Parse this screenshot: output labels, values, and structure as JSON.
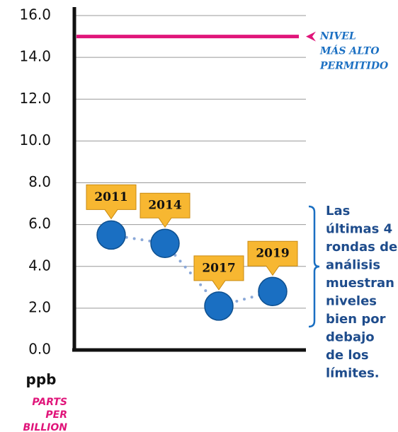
{
  "chart_data": {
    "type": "line",
    "categories": [
      "2011",
      "2014",
      "2017",
      "2019"
    ],
    "values": [
      5.5,
      5.1,
      2.1,
      2.8
    ],
    "color": "#1a6fc2",
    "line_color": "#8aa8d8",
    "label_color": "#f7b731",
    "ylim": [
      0,
      16
    ],
    "yticks": [
      {
        "value": 0,
        "label": "0.0"
      },
      {
        "value": 2,
        "label": "2.0"
      },
      {
        "value": 4,
        "label": "4.0"
      },
      {
        "value": 6,
        "label": "6.0"
      },
      {
        "value": 8,
        "label": "8.0"
      },
      {
        "value": 10,
        "label": "10.0"
      },
      {
        "value": 12,
        "label": "12.0"
      },
      {
        "value": 14,
        "label": "14.0"
      },
      {
        "value": 16,
        "label": "16.0"
      }
    ],
    "grid": true,
    "reference_line": {
      "value": 15,
      "color": "#e0157a",
      "label": [
        "NIVEL",
        "MÁS ALTO",
        "PERMITIDO"
      ]
    },
    "y_unit": "ppb",
    "y_unit_note": [
      "PARTS",
      "PER",
      "BILLION"
    ],
    "annotation": [
      "Las",
      "últimas 4",
      "rondas de",
      "análisis",
      "muestran",
      "niveles",
      "bien por",
      "debajo",
      "de los",
      "límites."
    ]
  }
}
